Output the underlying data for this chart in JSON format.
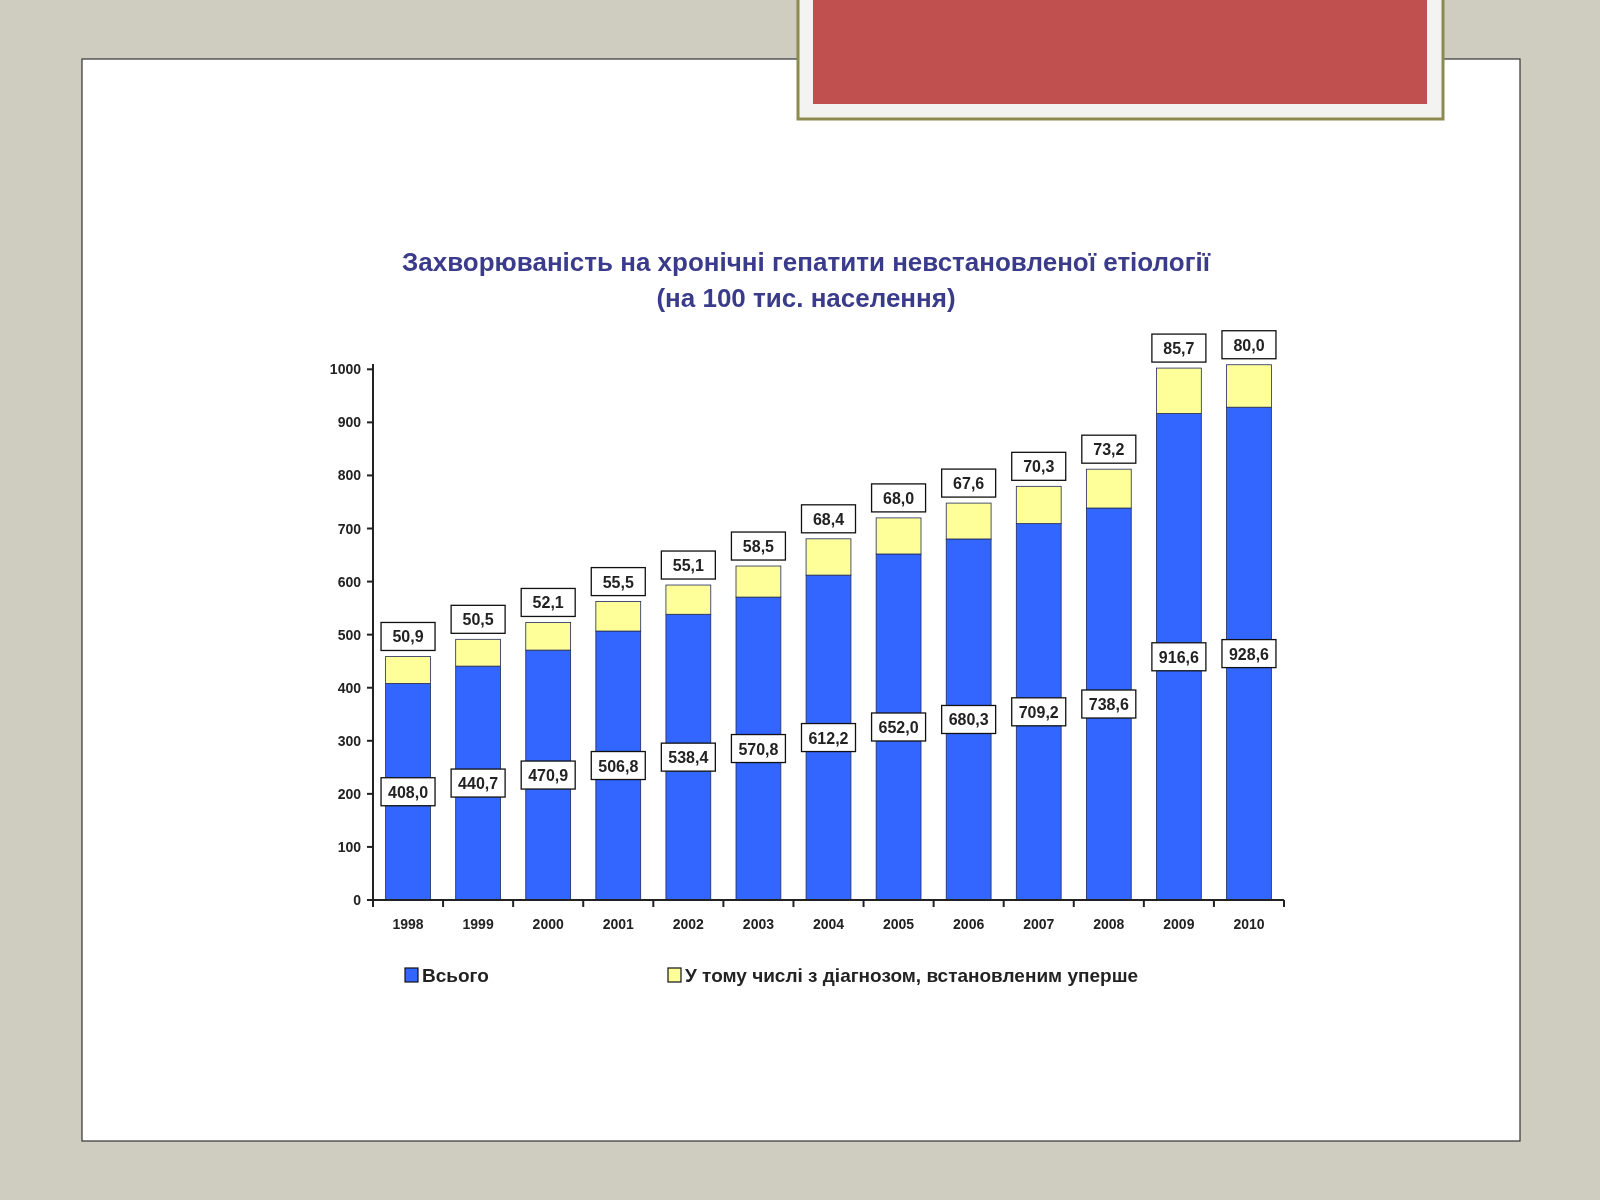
{
  "chart_data": {
    "type": "bar",
    "title": "Захворюваність на хронічні гепатити невстановленої етіології",
    "subtitle": "(на 100 тис. населення)",
    "categories": [
      "1998",
      "1999",
      "2000",
      "2001",
      "2002",
      "2003",
      "2004",
      "2005",
      "2006",
      "2007",
      "2008",
      "2009",
      "2010"
    ],
    "stacked": true,
    "series": [
      {
        "name": "Всього",
        "color": "#3366ff",
        "values": [
          408.0,
          440.7,
          470.9,
          506.8,
          538.4,
          570.8,
          612.2,
          652.0,
          680.3,
          709.2,
          738.6,
          916.6,
          928.6
        ],
        "value_labels": [
          "408,0",
          "440,7",
          "470,9",
          "506,8",
          "538,4",
          "570,8",
          "612,2",
          "652,0",
          "680,3",
          "709,2",
          "738,6",
          "916,6",
          "928,6"
        ]
      },
      {
        "name": "У тому числі з діагнозом, встановленим уперше",
        "color": "#ffff99",
        "values": [
          50.9,
          50.5,
          52.1,
          55.5,
          55.1,
          58.5,
          68.4,
          68.0,
          67.6,
          70.3,
          73.2,
          85.7,
          80.0
        ],
        "value_labels": [
          "50,9",
          "50,5",
          "52,1",
          "55,5",
          "55,1",
          "58,5",
          "68,4",
          "68,0",
          "67,6",
          "70,3",
          "73,2",
          "85,7",
          "80,0"
        ]
      }
    ],
    "ylim": [
      0,
      1010
    ],
    "yticks": [
      0,
      100,
      200,
      300,
      400,
      500,
      600,
      700,
      800,
      900,
      1000
    ],
    "legend": "bottom"
  }
}
